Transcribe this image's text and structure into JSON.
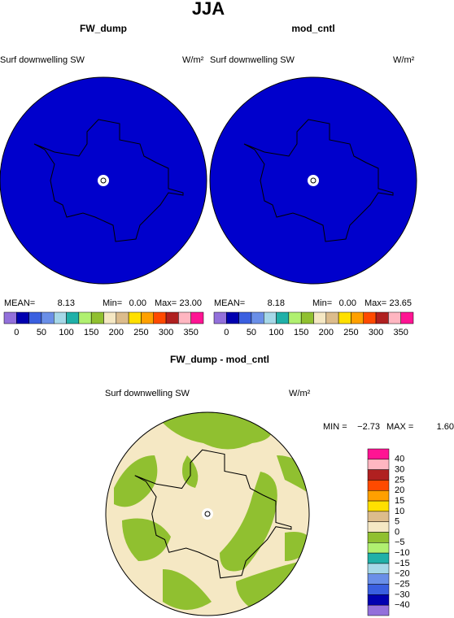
{
  "title": "JJA",
  "panels": [
    {
      "title": "FW_dump",
      "field": "Surf downwelling SW",
      "units": "W/m²",
      "stats": {
        "mean_label": "MEAN=",
        "mean": "8.13",
        "min_label": "Min=",
        "min": "0.00",
        "max_label": "Max=",
        "max": "23.00"
      }
    },
    {
      "title": "mod_cntl",
      "field": "Surf downwelling SW",
      "units": "W/m²",
      "stats": {
        "mean_label": "MEAN=",
        "mean": "8.18",
        "min_label": "Min=",
        "min": "0.00",
        "max_label": "Max=",
        "max": "23.65"
      }
    }
  ],
  "colorbar": {
    "colors": [
      "#9370db",
      "#0000b0",
      "#3a5fe0",
      "#6a8fe8",
      "#a6d8e8",
      "#20b0a8",
      "#b0f070",
      "#90c030",
      "#f5e8c4",
      "#dcbc8c",
      "#ffe000",
      "#ffa000",
      "#ff4a00",
      "#b02020",
      "#ffb6c1",
      "#ff1493"
    ],
    "ticks": [
      0,
      50,
      100,
      150,
      200,
      250,
      300,
      350
    ]
  },
  "difference": {
    "title": "FW_dump - mod_cntl",
    "field": "Surf downwelling SW",
    "units": "W/m²",
    "min_label": "MIN =",
    "min": "−2.73",
    "max_label": "MAX =",
    "max": "1.60",
    "colorbar": {
      "colors": [
        "#ff1493",
        "#ffb6c1",
        "#b02020",
        "#ff4a00",
        "#ffa000",
        "#ffe000",
        "#dcbc8c",
        "#f5e8c4",
        "#90c030",
        "#b0f070",
        "#20b0a8",
        "#a6d8e8",
        "#6a8fe8",
        "#3a5fe0",
        "#0000b0",
        "#9370db"
      ],
      "ticks": [
        {
          "value": 40,
          "label": "40"
        },
        {
          "value": 30,
          "label": "30"
        },
        {
          "value": 25,
          "label": "25"
        },
        {
          "value": 20,
          "label": "20"
        },
        {
          "value": 15,
          "label": "15"
        },
        {
          "value": 10,
          "label": "10"
        },
        {
          "value": 5,
          "label": "5"
        },
        {
          "value": 0,
          "label": "0"
        },
        {
          "value": -5,
          "label": "−5"
        },
        {
          "value": -10,
          "label": "−10"
        },
        {
          "value": -15,
          "label": "−15"
        },
        {
          "value": -20,
          "label": "−20"
        },
        {
          "value": -25,
          "label": "−25"
        },
        {
          "value": -30,
          "label": "−30"
        },
        {
          "value": -40,
          "label": "−40"
        }
      ]
    }
  }
}
